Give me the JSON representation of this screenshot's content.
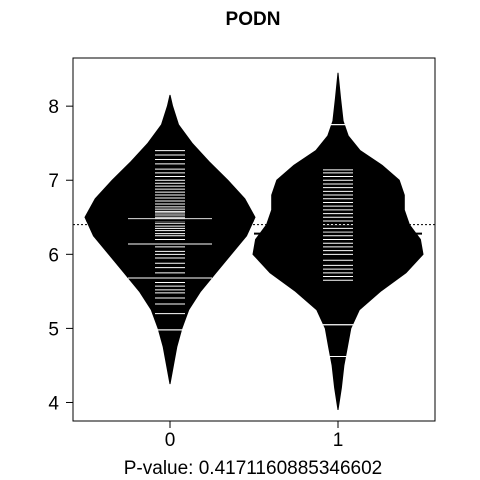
{
  "chart_data": {
    "type": "beanplot",
    "title": "PODN",
    "subtitle": "P-value: 0.4171160885346602",
    "xlabel": "",
    "ylabel": "",
    "categories": [
      "0",
      "1"
    ],
    "ylim": [
      3.75,
      8.65
    ],
    "yticks": [
      "4",
      "5",
      "6",
      "7",
      "8"
    ],
    "overall_mean": 6.4,
    "grid": false,
    "beans": [
      {
        "name": "0",
        "mean": 6.46,
        "density": [
          [
            4.25,
            0.0
          ],
          [
            4.5,
            0.04
          ],
          [
            4.75,
            0.08
          ],
          [
            5.0,
            0.14
          ],
          [
            5.25,
            0.22
          ],
          [
            5.5,
            0.36
          ],
          [
            5.75,
            0.54
          ],
          [
            6.0,
            0.72
          ],
          [
            6.25,
            0.9
          ],
          [
            6.5,
            1.0
          ],
          [
            6.75,
            0.88
          ],
          [
            7.0,
            0.68
          ],
          [
            7.25,
            0.46
          ],
          [
            7.5,
            0.26
          ],
          [
            7.75,
            0.1
          ],
          [
            8.0,
            0.03
          ],
          [
            8.15,
            0.0
          ]
        ],
        "points": [
          4.98,
          5.2,
          5.33,
          5.41,
          5.48,
          5.52,
          5.57,
          5.62,
          5.68,
          5.75,
          5.82,
          5.88,
          5.95,
          6.0,
          6.04,
          6.1,
          6.14,
          6.2,
          6.25,
          6.28,
          6.32,
          6.35,
          6.38,
          6.42,
          6.45,
          6.48,
          6.5,
          6.53,
          6.56,
          6.58,
          6.61,
          6.64,
          6.68,
          6.72,
          6.76,
          6.8,
          6.84,
          6.88,
          6.92,
          6.96,
          7.0,
          7.05,
          7.1,
          7.15,
          7.22,
          7.28,
          7.34,
          7.4
        ],
        "long_lines": [
          4.98,
          5.68,
          6.14,
          6.48
        ]
      },
      {
        "name": "1",
        "mean": 6.28,
        "density": [
          [
            3.9,
            0.0
          ],
          [
            4.2,
            0.04
          ],
          [
            4.5,
            0.07
          ],
          [
            4.75,
            0.11
          ],
          [
            5.0,
            0.15
          ],
          [
            5.25,
            0.25
          ],
          [
            5.5,
            0.5
          ],
          [
            5.75,
            0.8
          ],
          [
            6.0,
            1.0
          ],
          [
            6.2,
            0.97
          ],
          [
            6.4,
            0.84
          ],
          [
            6.6,
            0.78
          ],
          [
            6.8,
            0.78
          ],
          [
            7.0,
            0.72
          ],
          [
            7.2,
            0.52
          ],
          [
            7.4,
            0.26
          ],
          [
            7.6,
            0.12
          ],
          [
            7.8,
            0.06
          ],
          [
            8.1,
            0.03
          ],
          [
            8.45,
            0.0
          ]
        ],
        "points": [
          4.62,
          5.05,
          5.65,
          5.7,
          5.75,
          5.8,
          5.85,
          5.92,
          6.0,
          6.05,
          6.1,
          6.15,
          6.2,
          6.25,
          6.3,
          6.35,
          6.4,
          6.45,
          6.5,
          6.55,
          6.6,
          6.65,
          6.7,
          6.75,
          6.8,
          6.85,
          6.9,
          6.95,
          7.0,
          7.05,
          7.1,
          7.14,
          7.75
        ],
        "long_lines": [
          4.62,
          5.05,
          7.75
        ]
      }
    ]
  }
}
